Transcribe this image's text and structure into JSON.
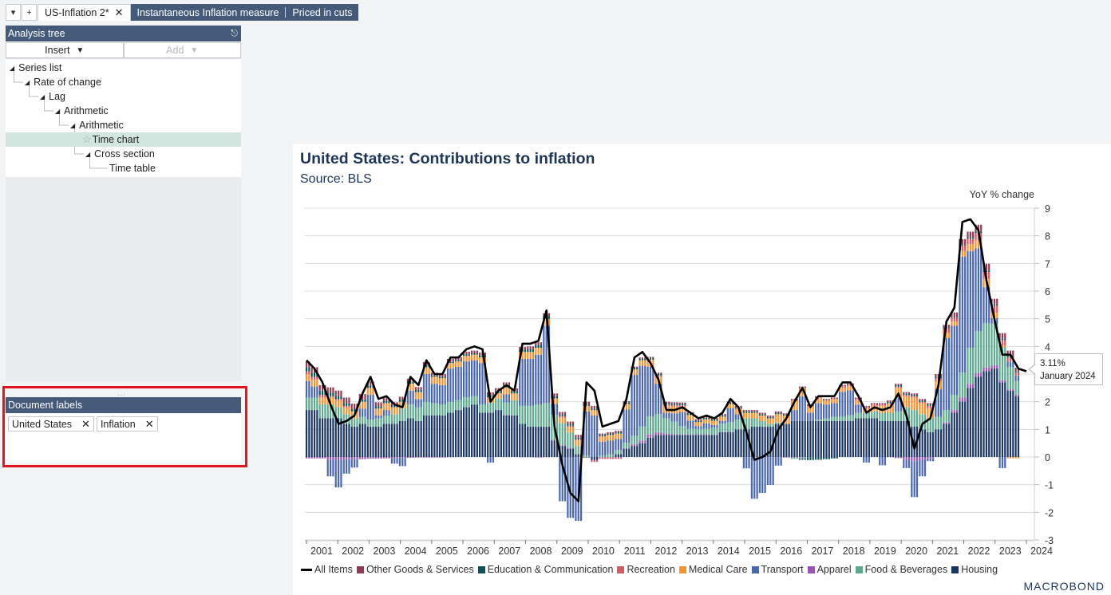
{
  "tabbar": {
    "menu_icon": "dropdown-arrow",
    "add_icon": "+",
    "tabs": [
      {
        "label": "US-Inflation 2*",
        "active": true,
        "closable": true
      },
      {
        "label": "Instantaneous Inflation measure",
        "active": false
      },
      {
        "label": "Priced in cuts",
        "active": false
      }
    ]
  },
  "analysis_tree": {
    "title": "Analysis tree",
    "pin_icon": "pin",
    "insert_label": "Insert",
    "add_label": "Add",
    "nodes": [
      {
        "label": "Series list",
        "depth": 0,
        "expandable": true
      },
      {
        "label": "Rate of change",
        "depth": 1,
        "expandable": true
      },
      {
        "label": "Lag",
        "depth": 2,
        "expandable": true
      },
      {
        "label": "Arithmetic",
        "depth": 3,
        "expandable": true
      },
      {
        "label": "Arithmetic",
        "depth": 4,
        "expandable": true
      },
      {
        "label": "Time chart",
        "depth": 5,
        "expandable": false,
        "selected": true,
        "icon": "star"
      },
      {
        "label": "Cross section",
        "depth": 5,
        "expandable": true
      },
      {
        "label": "Time table",
        "depth": 6,
        "expandable": false
      }
    ]
  },
  "document_labels": {
    "title": "Document labels",
    "labels": [
      "United States",
      "Inflation"
    ]
  },
  "chart_header": {
    "title": "United States: Contributions to inflation",
    "subtitle": "Source: BLS",
    "y_unit": "YoY % change"
  },
  "tooltip": {
    "value": "3.11%",
    "date": "January 2024"
  },
  "branding": "MACROBOND",
  "chart_data": {
    "type": "bar",
    "stacked": true,
    "overlay_line": "All Items",
    "title": "United States: Contributions to inflation",
    "subtitle": "Source: BLS",
    "ylabel": "YoY % change",
    "xlabel": "",
    "ylim": [
      -3,
      9
    ],
    "yticks": [
      9,
      8,
      7,
      6,
      5,
      4,
      3,
      2,
      1,
      0,
      -1,
      -2,
      -3
    ],
    "xticks": [
      "2001",
      "2002",
      "2003",
      "2004",
      "2005",
      "2006",
      "2007",
      "2008",
      "2009",
      "2010",
      "2011",
      "2012",
      "2013",
      "2014",
      "2015",
      "2016",
      "2017",
      "2018",
      "2019",
      "2020",
      "2021",
      "2022",
      "2023",
      "2024"
    ],
    "grid": true,
    "legend_position": "bottom",
    "frequency": "quarterly (approx. read from monthly chart)",
    "x_start": "2001Q1",
    "x_end": "2024Q1",
    "colors": {
      "All Items": "#000000",
      "Other Goods & Services": "#8f3a55",
      "Education & Communication": "#0c5157",
      "Recreation": "#d45a63",
      "Medical Care": "#f39433",
      "Transport": "#4a67ad",
      "Apparel": "#9956b2",
      "Food & Beverages": "#5ea990",
      "Housing": "#1a3562"
    },
    "series": [
      {
        "name": "All Items",
        "kind": "line",
        "values": [
          3.5,
          3.2,
          2.7,
          1.9,
          1.2,
          1.3,
          1.5,
          2.3,
          2.9,
          2.1,
          2.2,
          1.9,
          1.8,
          2.9,
          2.6,
          3.5,
          3.0,
          3.0,
          3.6,
          3.6,
          3.9,
          4.0,
          3.9,
          2.0,
          2.4,
          2.6,
          2.4,
          4.1,
          4.1,
          4.2,
          5.3,
          1.1,
          -0.3,
          -1.3,
          -1.6,
          2.7,
          2.4,
          1.1,
          1.2,
          1.3,
          2.1,
          3.6,
          3.8,
          3.4,
          2.8,
          1.7,
          1.7,
          1.8,
          1.6,
          1.4,
          1.5,
          1.4,
          1.6,
          2.1,
          1.8,
          0.9,
          -0.1,
          0.0,
          0.2,
          1.0,
          1.4,
          2.0,
          2.5,
          1.8,
          2.2,
          2.2,
          2.2,
          2.7,
          2.7,
          2.2,
          1.6,
          1.8,
          1.7,
          1.8,
          2.3,
          1.5,
          0.3,
          1.2,
          1.4,
          2.6,
          4.9,
          5.4,
          8.5,
          8.6,
          8.2,
          6.4,
          5.0,
          3.7,
          3.7,
          3.2,
          3.1
        ]
      },
      {
        "name": "Housing",
        "kind": "bar",
        "values": [
          1.7,
          1.7,
          1.4,
          1.4,
          1.4,
          1.2,
          1.1,
          1.2,
          1.1,
          1.1,
          1.2,
          1.2,
          1.3,
          1.4,
          1.3,
          1.5,
          1.5,
          1.5,
          1.6,
          1.7,
          1.8,
          1.9,
          1.6,
          1.6,
          1.7,
          1.5,
          1.5,
          1.2,
          1.1,
          1.1,
          1.1,
          0.6,
          0.4,
          0.3,
          0.1,
          0.0,
          -0.1,
          0.0,
          0.0,
          0.1,
          0.3,
          0.4,
          0.5,
          0.7,
          0.8,
          0.8,
          0.8,
          0.8,
          0.8,
          0.8,
          0.8,
          0.8,
          0.9,
          0.9,
          1.0,
          1.0,
          1.1,
          1.1,
          1.1,
          1.2,
          1.2,
          1.3,
          1.3,
          1.3,
          1.3,
          1.3,
          1.3,
          1.3,
          1.3,
          1.4,
          1.4,
          1.4,
          1.3,
          1.3,
          1.3,
          1.3,
          1.1,
          1.0,
          0.9,
          1.0,
          1.2,
          1.6,
          2.0,
          2.5,
          2.9,
          3.1,
          3.2,
          2.7,
          2.4,
          2.2,
          2.1
        ]
      },
      {
        "name": "Apparel",
        "kind": "bar",
        "values": [
          -0.05,
          -0.05,
          -0.05,
          -0.1,
          -0.1,
          -0.1,
          -0.08,
          -0.08,
          -0.06,
          -0.06,
          -0.05,
          -0.04,
          -0.03,
          -0.03,
          -0.02,
          -0.02,
          -0.02,
          -0.02,
          -0.01,
          0.01,
          0.01,
          0.0,
          0.0,
          0.01,
          0.01,
          0.02,
          0.0,
          -0.01,
          -0.01,
          -0.02,
          -0.01,
          0.02,
          0.03,
          0.03,
          -0.01,
          -0.03,
          -0.03,
          -0.02,
          -0.02,
          -0.02,
          0.02,
          0.07,
          0.1,
          0.12,
          0.1,
          0.05,
          0.03,
          0.02,
          0.02,
          0.02,
          0.02,
          0.01,
          0.01,
          0.01,
          0.0,
          -0.01,
          -0.01,
          0.0,
          -0.01,
          -0.01,
          -0.02,
          -0.02,
          -0.02,
          -0.01,
          0.0,
          0.0,
          0.0,
          0.01,
          0.01,
          0.0,
          0.0,
          0.0,
          0.0,
          -0.01,
          -0.04,
          -0.1,
          -0.15,
          -0.1,
          -0.05,
          0.0,
          0.05,
          0.1,
          0.15,
          0.15,
          0.15,
          0.14,
          0.12,
          0.08,
          0.05,
          0.05,
          0.03
        ]
      },
      {
        "name": "Food & Beverages",
        "kind": "bar",
        "values": [
          0.45,
          0.45,
          0.5,
          0.5,
          0.4,
          0.35,
          0.3,
          0.25,
          0.25,
          0.3,
          0.3,
          0.35,
          0.45,
          0.5,
          0.5,
          0.5,
          0.45,
          0.4,
          0.4,
          0.35,
          0.35,
          0.3,
          0.3,
          0.35,
          0.4,
          0.45,
          0.55,
          0.65,
          0.75,
          0.8,
          0.85,
          0.9,
          0.8,
          0.55,
          0.3,
          0.05,
          0.0,
          0.05,
          0.1,
          0.15,
          0.2,
          0.3,
          0.5,
          0.65,
          0.65,
          0.55,
          0.45,
          0.3,
          0.2,
          0.2,
          0.2,
          0.25,
          0.3,
          0.35,
          0.35,
          0.4,
          0.3,
          0.2,
          0.1,
          0.05,
          0.0,
          -0.05,
          -0.03,
          0.0,
          0.05,
          0.1,
          0.15,
          0.15,
          0.2,
          0.2,
          0.2,
          0.25,
          0.3,
          0.3,
          0.35,
          0.5,
          0.6,
          0.55,
          0.5,
          0.45,
          0.45,
          0.55,
          0.9,
          1.3,
          1.5,
          1.6,
          1.5,
          1.2,
          0.8,
          0.5,
          0.35
        ]
      },
      {
        "name": "Transport",
        "kind": "bar",
        "values": [
          0.6,
          0.4,
          0.0,
          -0.6,
          -1.0,
          -0.5,
          -0.3,
          0.3,
          0.9,
          0.1,
          0.2,
          -0.2,
          -0.3,
          0.5,
          0.3,
          1.0,
          0.7,
          0.7,
          1.2,
          1.2,
          1.3,
          1.3,
          1.5,
          -0.2,
          0.0,
          0.3,
          0.0,
          1.7,
          1.7,
          1.8,
          2.8,
          0.4,
          -1.6,
          -2.2,
          -2.3,
          1.6,
          1.5,
          0.5,
          0.5,
          0.4,
          1.2,
          2.2,
          2.2,
          1.8,
          1.1,
          0.2,
          0.3,
          0.5,
          0.3,
          0.1,
          0.2,
          0.1,
          0.1,
          0.5,
          0.2,
          -0.4,
          -1.5,
          -1.3,
          -1.0,
          -0.3,
          0.0,
          0.4,
          0.9,
          0.3,
          0.6,
          0.5,
          0.5,
          0.9,
          0.9,
          0.3,
          -0.2,
          0.0,
          -0.3,
          0.0,
          0.5,
          -0.3,
          -1.3,
          -0.6,
          -0.1,
          1.0,
          2.6,
          2.5,
          4.2,
          3.5,
          3.0,
          1.3,
          0.2,
          -0.4,
          0.2,
          0.2,
          0.3
        ]
      },
      {
        "name": "Medical Care",
        "kind": "bar",
        "values": [
          0.25,
          0.25,
          0.25,
          0.25,
          0.25,
          0.25,
          0.25,
          0.25,
          0.25,
          0.25,
          0.25,
          0.25,
          0.25,
          0.25,
          0.25,
          0.25,
          0.25,
          0.25,
          0.2,
          0.2,
          0.2,
          0.2,
          0.2,
          0.2,
          0.2,
          0.25,
          0.25,
          0.25,
          0.25,
          0.25,
          0.25,
          0.2,
          0.2,
          0.2,
          0.2,
          0.2,
          0.2,
          0.2,
          0.2,
          0.2,
          0.2,
          0.2,
          0.2,
          0.25,
          0.25,
          0.25,
          0.25,
          0.2,
          0.2,
          0.15,
          0.15,
          0.15,
          0.15,
          0.15,
          0.2,
          0.2,
          0.2,
          0.2,
          0.2,
          0.3,
          0.3,
          0.35,
          0.3,
          0.25,
          0.2,
          0.15,
          0.15,
          0.15,
          0.15,
          0.15,
          0.15,
          0.2,
          0.25,
          0.3,
          0.35,
          0.4,
          0.45,
          0.4,
          0.35,
          0.3,
          0.2,
          0.15,
          0.2,
          0.25,
          0.3,
          0.3,
          0.2,
          0.05,
          -0.05,
          -0.05,
          0.05
        ]
      },
      {
        "name": "Recreation",
        "kind": "bar",
        "values": [
          0.1,
          0.1,
          0.1,
          0.05,
          0.05,
          0.05,
          0.0,
          0.0,
          0.0,
          0.0,
          0.0,
          0.0,
          0.0,
          0.0,
          0.0,
          0.0,
          0.0,
          0.0,
          0.0,
          0.0,
          0.0,
          0.0,
          0.0,
          0.0,
          0.0,
          0.0,
          0.0,
          0.0,
          0.0,
          0.0,
          0.0,
          0.0,
          0.05,
          0.05,
          0.05,
          0.0,
          -0.05,
          -0.05,
          -0.05,
          -0.05,
          0.0,
          0.0,
          0.0,
          0.0,
          0.05,
          0.05,
          0.05,
          0.05,
          0.0,
          0.0,
          0.0,
          0.0,
          0.0,
          0.0,
          0.0,
          0.0,
          0.0,
          0.0,
          0.0,
          0.0,
          0.0,
          0.0,
          0.0,
          0.0,
          0.0,
          0.0,
          0.0,
          0.05,
          0.05,
          0.05,
          0.05,
          0.05,
          0.05,
          0.05,
          0.05,
          0.05,
          0.05,
          0.05,
          0.1,
          0.1,
          0.15,
          0.15,
          0.2,
          0.2,
          0.25,
          0.25,
          0.25,
          0.2,
          0.15,
          0.1,
          0.1
        ]
      },
      {
        "name": "Education & Communication",
        "kind": "bar",
        "values": [
          0.15,
          0.15,
          0.15,
          0.12,
          0.1,
          0.1,
          0.08,
          0.08,
          0.08,
          0.08,
          0.08,
          0.08,
          0.08,
          0.08,
          0.08,
          0.08,
          0.05,
          0.05,
          0.05,
          0.05,
          0.05,
          0.05,
          0.08,
          0.08,
          0.08,
          0.08,
          0.08,
          0.08,
          0.1,
          0.1,
          0.1,
          0.08,
          0.05,
          0.05,
          0.05,
          0.05,
          0.05,
          0.05,
          0.05,
          0.05,
          0.05,
          0.05,
          0.05,
          0.05,
          0.05,
          0.05,
          0.05,
          0.05,
          0.05,
          0.05,
          0.05,
          0.05,
          0.05,
          0.05,
          0.05,
          0.05,
          0.05,
          0.05,
          0.05,
          0.05,
          0.03,
          0.0,
          -0.05,
          -0.1,
          -0.1,
          -0.08,
          -0.05,
          0.0,
          0.0,
          0.0,
          0.0,
          0.0,
          0.0,
          0.05,
          0.05,
          0.05,
          0.05,
          0.05,
          0.05,
          0.05,
          0.03,
          0.03,
          0.03,
          0.05,
          0.05,
          0.05,
          0.05,
          0.05,
          0.05,
          0.03,
          0.03
        ]
      },
      {
        "name": "Other Goods & Services",
        "kind": "bar",
        "values": [
          0.2,
          0.2,
          0.2,
          0.2,
          0.2,
          0.2,
          0.2,
          0.2,
          0.15,
          0.15,
          0.1,
          0.1,
          0.1,
          0.1,
          0.1,
          0.1,
          0.1,
          0.1,
          0.1,
          0.1,
          0.1,
          0.1,
          0.1,
          0.1,
          0.1,
          0.1,
          0.1,
          0.1,
          0.1,
          0.1,
          0.1,
          0.1,
          0.1,
          0.1,
          0.1,
          0.1,
          0.1,
          0.05,
          0.05,
          0.05,
          0.05,
          0.05,
          0.05,
          0.05,
          0.05,
          0.05,
          0.05,
          0.05,
          0.05,
          0.05,
          0.05,
          0.05,
          0.05,
          0.05,
          0.05,
          0.05,
          0.05,
          0.05,
          0.05,
          0.05,
          0.05,
          0.05,
          0.05,
          0.05,
          0.05,
          0.05,
          0.05,
          0.05,
          0.05,
          0.05,
          0.05,
          0.05,
          0.05,
          0.05,
          0.05,
          0.05,
          0.05,
          0.05,
          0.05,
          0.1,
          0.1,
          0.15,
          0.2,
          0.2,
          0.25,
          0.25,
          0.2,
          0.2,
          0.2,
          0.15,
          0.15
        ]
      }
    ]
  }
}
